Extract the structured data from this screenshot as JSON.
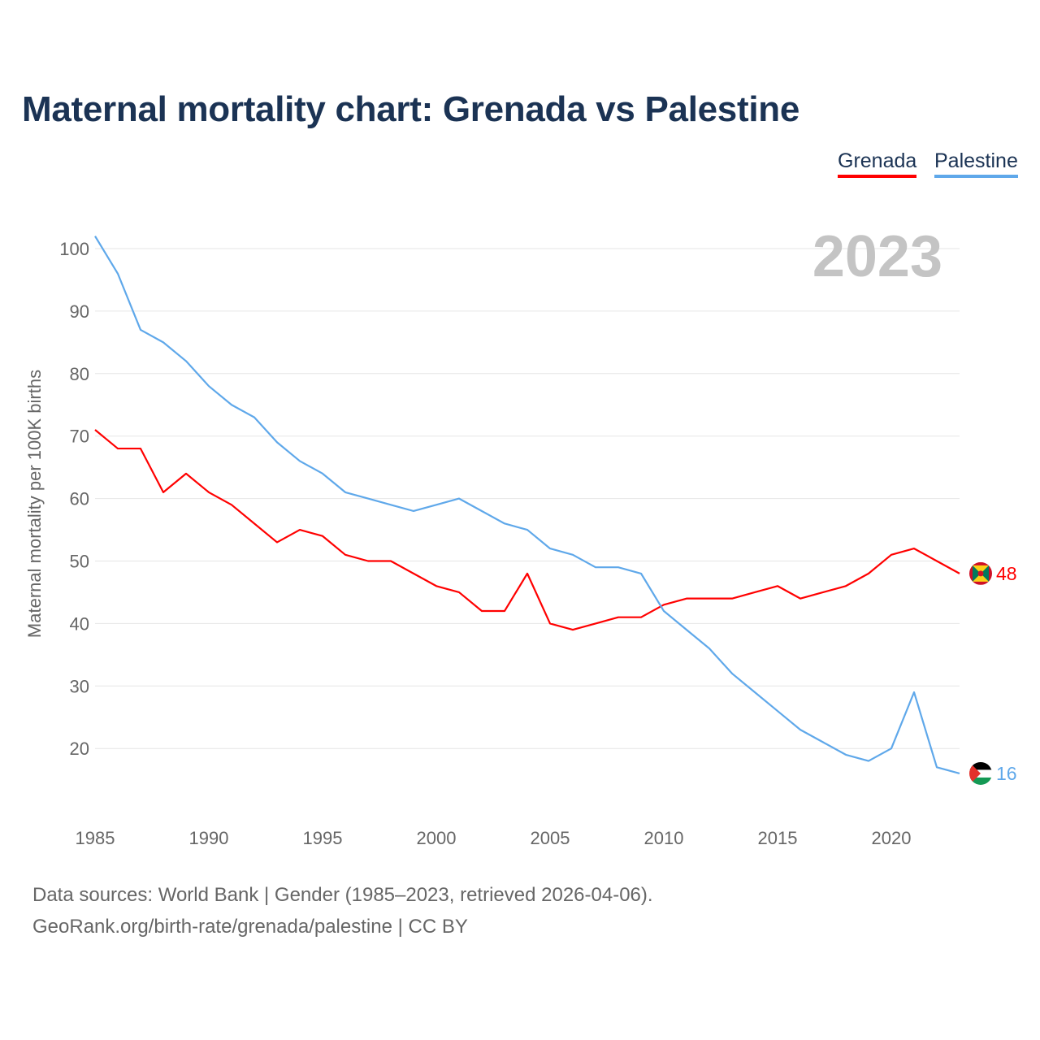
{
  "chart_data": {
    "type": "line",
    "title": "Maternal mortality chart: Grenada vs Palestine",
    "ylabel": "Maternal mortality per 100K births",
    "xlabel": "",
    "year_label": "2023",
    "x": [
      1985,
      1986,
      1987,
      1988,
      1989,
      1990,
      1991,
      1992,
      1993,
      1994,
      1995,
      1996,
      1997,
      1998,
      1999,
      2000,
      2001,
      2002,
      2003,
      2004,
      2005,
      2006,
      2007,
      2008,
      2009,
      2010,
      2011,
      2012,
      2013,
      2014,
      2015,
      2016,
      2017,
      2018,
      2019,
      2020,
      2021,
      2022,
      2023
    ],
    "xlim": [
      1985,
      2023
    ],
    "ylim": [
      10,
      102
    ],
    "xticks": [
      1985,
      1990,
      1995,
      2000,
      2005,
      2010,
      2015,
      2020
    ],
    "yticks": [
      20,
      30,
      40,
      50,
      60,
      70,
      80,
      90,
      100
    ],
    "grid": true,
    "legend_position": "top-right",
    "series": [
      {
        "name": "Grenada",
        "color": "#ff0000",
        "end_label": "48",
        "flag_icon": "grenada-flag-icon",
        "values": [
          71,
          68,
          68,
          61,
          64,
          61,
          59,
          56,
          53,
          55,
          54,
          51,
          50,
          50,
          48,
          46,
          45,
          42,
          42,
          48,
          40,
          39,
          40,
          41,
          41,
          43,
          44,
          44,
          44,
          45,
          46,
          44,
          45,
          46,
          48,
          51,
          52,
          50,
          48
        ]
      },
      {
        "name": "Palestine",
        "color": "#5fa8ea",
        "end_label": "16",
        "flag_icon": "palestine-flag-icon",
        "values": [
          102,
          96,
          87,
          85,
          82,
          78,
          75,
          73,
          69,
          66,
          64,
          61,
          60,
          59,
          58,
          59,
          60,
          58,
          56,
          55,
          52,
          51,
          49,
          49,
          48,
          42,
          39,
          36,
          32,
          29,
          26,
          23,
          21,
          19,
          18,
          20,
          29,
          17,
          16
        ]
      }
    ]
  },
  "footer": {
    "line1": "Data sources: World Bank | Gender (1985–2023, retrieved 2026-04-06).",
    "line2": "GeoRank.org/birth-rate/grenada/palestine | CC BY"
  }
}
